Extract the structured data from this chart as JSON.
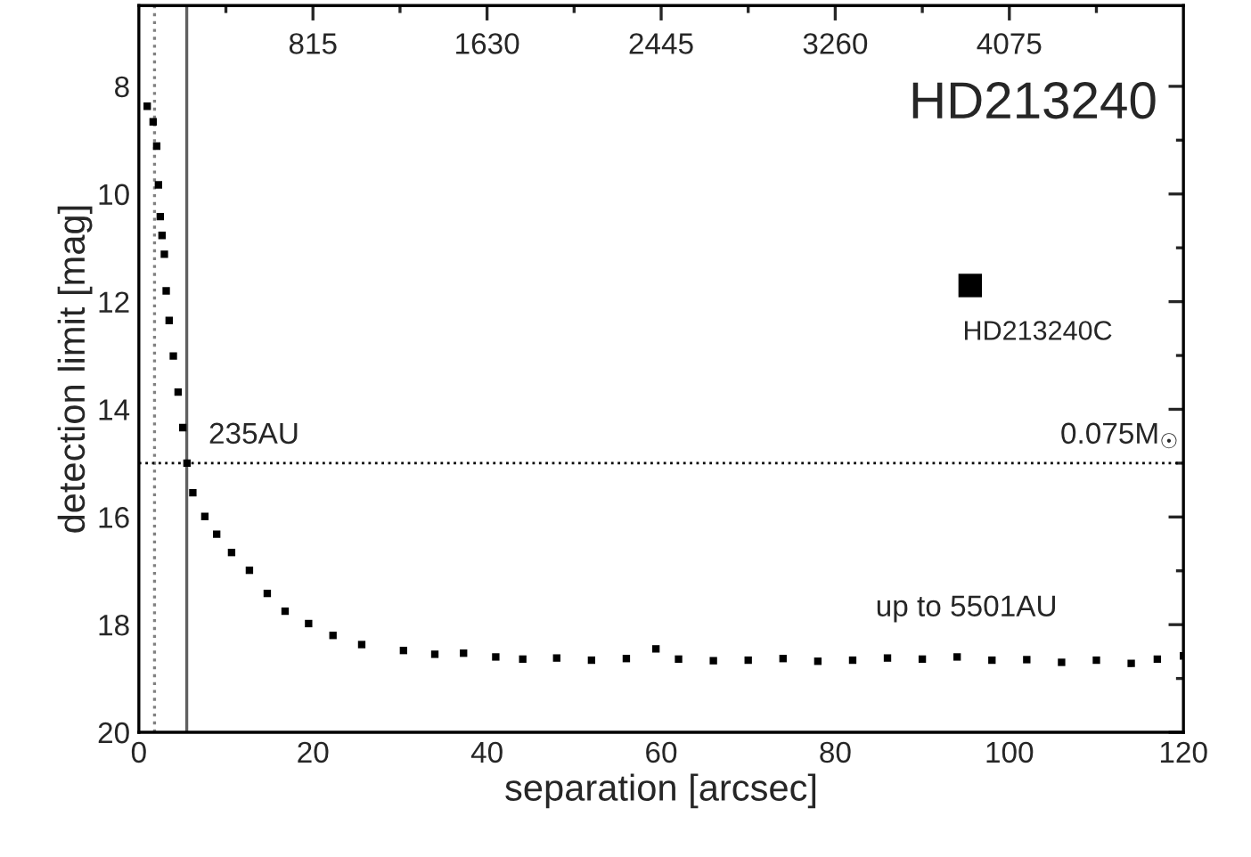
{
  "chart_data": {
    "type": "scatter",
    "title": "HD213240",
    "xlabel": "separation [arcsec]",
    "ylabel": "detection limit [mag]",
    "xlim": [
      0,
      120
    ],
    "xticks": [
      0,
      20,
      40,
      60,
      80,
      100,
      120
    ],
    "ylim": [
      20,
      6.5
    ],
    "yticks": [
      8,
      10,
      12,
      14,
      16,
      18,
      20
    ],
    "x2lim": [
      0,
      4890
    ],
    "x2ticks": [
      815,
      1630,
      2445,
      3260,
      4075
    ],
    "grid": false,
    "legend": false,
    "marker": "square",
    "series": [
      {
        "color": "#000000",
        "x": [
          0.96,
          1.64,
          2.05,
          2.25,
          2.46,
          2.66,
          2.93,
          3.14,
          3.48,
          3.96,
          4.51,
          5.05,
          5.53,
          6.2,
          7.58,
          8.94,
          10.65,
          12.7,
          14.75,
          16.8,
          19.5,
          22.3,
          25.6,
          30.4,
          34,
          37.3,
          41,
          44.1,
          48,
          52,
          56,
          59.4,
          62,
          66,
          70,
          74,
          78,
          82,
          86,
          90,
          94,
          98,
          102,
          106,
          110,
          114,
          117,
          120
        ],
        "values": [
          8.37,
          8.66,
          9.11,
          9.83,
          10.42,
          10.77,
          11.12,
          11.8,
          12.35,
          13.01,
          13.68,
          14.34,
          15.0,
          15.55,
          15.99,
          16.32,
          16.66,
          16.99,
          17.42,
          17.75,
          17.98,
          18.2,
          18.37,
          18.48,
          18.55,
          18.53,
          18.6,
          18.64,
          18.62,
          18.66,
          18.63,
          18.45,
          18.64,
          18.67,
          18.66,
          18.63,
          18.68,
          18.66,
          18.62,
          18.64,
          18.6,
          18.66,
          18.65,
          18.7,
          18.66,
          18.72,
          18.64,
          18.58
        ]
      },
      {
        "color": "#000000",
        "x": [
          95.5
        ],
        "values": [
          11.7
        ]
      }
    ],
    "ref_lines": [
      {
        "axis": "x",
        "value": 1.8,
        "label": null,
        "color": "#808080",
        "line_style": "dotted"
      },
      {
        "axis": "x",
        "value": 5.5,
        "label": "235AU",
        "color": "#606060",
        "line_style": "solid"
      },
      {
        "axis": "y",
        "value": 15,
        "label": "0.075M$_{☉}$",
        "color": "#000000",
        "line_style": "dotted"
      }
    ],
    "annotations": [
      {
        "text": "HD213240C",
        "x": 95.5,
        "y": 11.7
      },
      "up to 5501AU"
    ]
  }
}
